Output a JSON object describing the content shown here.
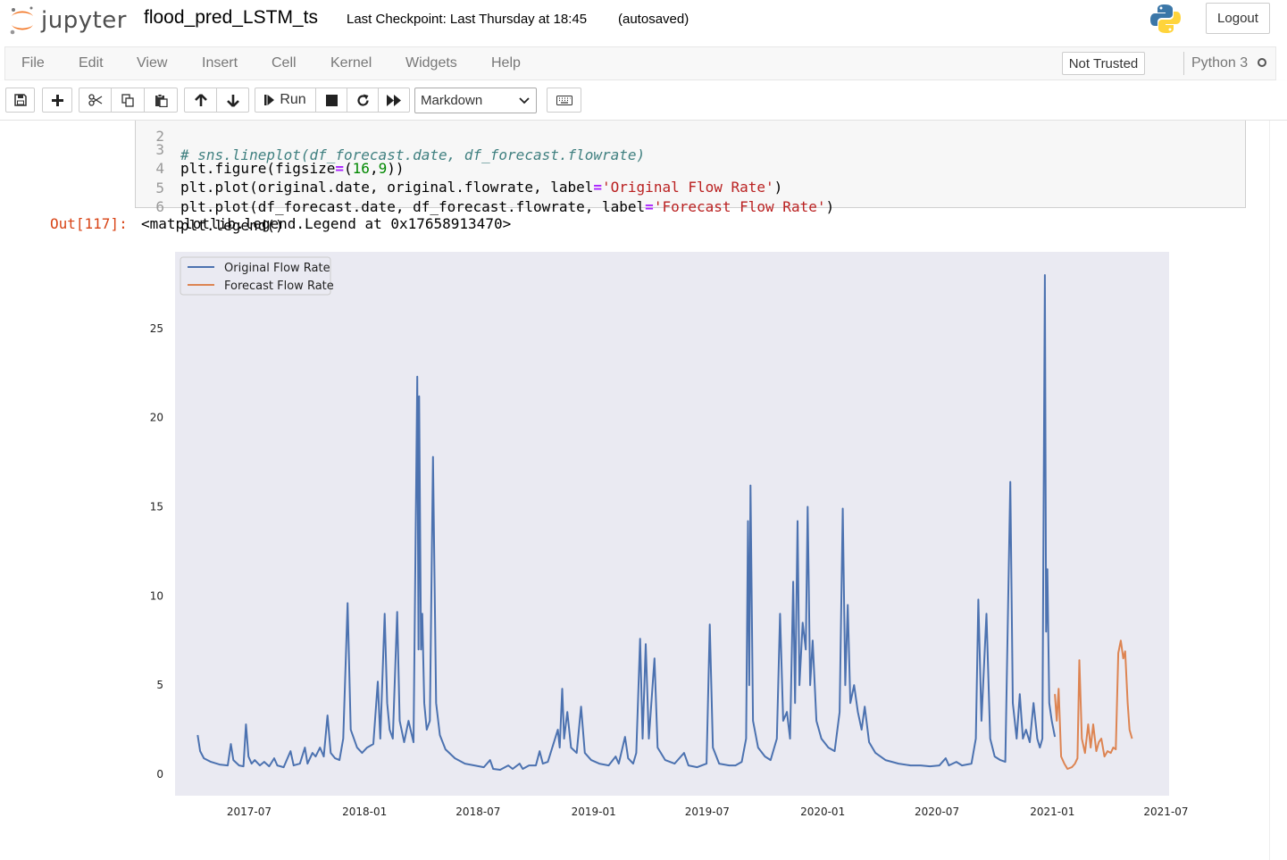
{
  "header": {
    "logo_text": "jupyter",
    "notebook_name": "flood_pred_LSTM_ts",
    "checkpoint": "Last Checkpoint: Last Thursday at 18:45",
    "autosave": "(autosaved)",
    "logout_label": "Logout"
  },
  "menubar": {
    "items": [
      "File",
      "Edit",
      "View",
      "Insert",
      "Cell",
      "Kernel",
      "Widgets",
      "Help"
    ],
    "trust_status": "Not Trusted",
    "kernel_name": "Python 3"
  },
  "toolbar": {
    "run_label": "Run",
    "cell_type": "Markdown"
  },
  "cell": {
    "lines": [
      {
        "n": "2",
        "code": "# sns.lineplot(df_forecast.date, df_forecast.flowrate)"
      },
      {
        "n": "3",
        "code": "plt.figure(figsize=(16,9))"
      },
      {
        "n": "4",
        "code": "plt.plot(original.date, original.flowrate, label='Original Flow Rate')"
      },
      {
        "n": "5",
        "code": "plt.plot(df_forecast.date, df_forecast.flowrate, label='Forecast Flow Rate')"
      },
      {
        "n": "6",
        "code": "plt.legend()"
      }
    ],
    "out_prompt": "Out[117]:",
    "out_text": "<matplotlib.legend.Legend at 0x17658913470>"
  },
  "chart_data": {
    "type": "line",
    "title": "",
    "xlabel": "",
    "ylabel": "",
    "x_ticks": [
      "2017-07",
      "2018-01",
      "2018-07",
      "2019-01",
      "2019-07",
      "2020-01",
      "2020-07",
      "2021-01",
      "2021-07"
    ],
    "y_ticks": [
      0,
      5,
      10,
      15,
      20,
      25
    ],
    "xlim": [
      "2017-03-05",
      "2021-07-06"
    ],
    "ylim": [
      -1.2,
      29.3
    ],
    "grid": false,
    "legend_position": "top-left",
    "background": "#eaeaf2",
    "series": [
      {
        "name": "Original Flow Rate",
        "color": "#4c72b0",
        "points": [
          [
            "2017-04-10",
            2.2
          ],
          [
            "2017-04-14",
            1.3
          ],
          [
            "2017-04-20",
            0.9
          ],
          [
            "2017-05-01",
            0.7
          ],
          [
            "2017-05-15",
            0.55
          ],
          [
            "2017-05-28",
            0.5
          ],
          [
            "2017-06-02",
            1.7
          ],
          [
            "2017-06-06",
            0.8
          ],
          [
            "2017-06-15",
            0.5
          ],
          [
            "2017-06-22",
            0.45
          ],
          [
            "2017-06-26",
            2.8
          ],
          [
            "2017-06-30",
            1.0
          ],
          [
            "2017-07-05",
            0.6
          ],
          [
            "2017-07-10",
            0.8
          ],
          [
            "2017-07-18",
            0.5
          ],
          [
            "2017-07-25",
            0.7
          ],
          [
            "2017-08-02",
            0.45
          ],
          [
            "2017-08-10",
            0.9
          ],
          [
            "2017-08-15",
            0.5
          ],
          [
            "2017-08-25",
            0.4
          ],
          [
            "2017-09-05",
            1.3
          ],
          [
            "2017-09-10",
            0.5
          ],
          [
            "2017-09-20",
            0.6
          ],
          [
            "2017-09-28",
            1.5
          ],
          [
            "2017-10-02",
            0.6
          ],
          [
            "2017-10-10",
            1.2
          ],
          [
            "2017-10-15",
            1.0
          ],
          [
            "2017-10-22",
            1.5
          ],
          [
            "2017-10-28",
            1.0
          ],
          [
            "2017-11-03",
            3.3
          ],
          [
            "2017-11-08",
            1.2
          ],
          [
            "2017-11-15",
            0.9
          ],
          [
            "2017-11-22",
            0.8
          ],
          [
            "2017-11-28",
            2.0
          ],
          [
            "2017-12-05",
            9.6
          ],
          [
            "2017-12-10",
            2.5
          ],
          [
            "2017-12-20",
            1.5
          ],
          [
            "2017-12-28",
            1.2
          ],
          [
            "2018-01-05",
            1.5
          ],
          [
            "2018-01-15",
            1.7
          ],
          [
            "2018-01-22",
            5.2
          ],
          [
            "2018-01-26",
            2.0
          ],
          [
            "2018-02-02",
            9.0
          ],
          [
            "2018-02-06",
            4.0
          ],
          [
            "2018-02-10",
            2.5
          ],
          [
            "2018-02-15",
            2.0
          ],
          [
            "2018-02-22",
            9.1
          ],
          [
            "2018-02-26",
            3.0
          ],
          [
            "2018-03-05",
            1.8
          ],
          [
            "2018-03-12",
            3.0
          ],
          [
            "2018-03-20",
            1.8
          ],
          [
            "2018-03-26",
            22.3
          ],
          [
            "2018-03-28",
            7.0
          ],
          [
            "2018-03-29",
            21.2
          ],
          [
            "2018-04-01",
            7.0
          ],
          [
            "2018-04-03",
            9.0
          ],
          [
            "2018-04-06",
            4.0
          ],
          [
            "2018-04-10",
            2.5
          ],
          [
            "2018-04-15",
            3.0
          ],
          [
            "2018-04-20",
            17.8
          ],
          [
            "2018-04-25",
            4.0
          ],
          [
            "2018-05-01",
            2.2
          ],
          [
            "2018-05-10",
            1.4
          ],
          [
            "2018-05-25",
            0.9
          ],
          [
            "2018-06-10",
            0.6
          ],
          [
            "2018-06-25",
            0.5
          ],
          [
            "2018-07-10",
            0.4
          ],
          [
            "2018-07-20",
            0.8
          ],
          [
            "2018-07-25",
            0.3
          ],
          [
            "2018-08-05",
            0.25
          ],
          [
            "2018-08-18",
            0.5
          ],
          [
            "2018-08-25",
            0.3
          ],
          [
            "2018-09-05",
            0.6
          ],
          [
            "2018-09-10",
            0.3
          ],
          [
            "2018-09-20",
            0.5
          ],
          [
            "2018-10-01",
            0.5
          ],
          [
            "2018-10-07",
            1.3
          ],
          [
            "2018-10-12",
            0.6
          ],
          [
            "2018-10-20",
            0.7
          ],
          [
            "2018-11-05",
            2.5
          ],
          [
            "2018-11-08",
            1.5
          ],
          [
            "2018-11-12",
            4.8
          ],
          [
            "2018-11-15",
            2.0
          ],
          [
            "2018-11-20",
            3.5
          ],
          [
            "2018-11-26",
            1.5
          ],
          [
            "2018-12-05",
            1.2
          ],
          [
            "2018-12-12",
            3.8
          ],
          [
            "2018-12-18",
            1.2
          ],
          [
            "2018-12-28",
            0.8
          ],
          [
            "2019-01-10",
            0.6
          ],
          [
            "2019-01-25",
            0.5
          ],
          [
            "2019-02-05",
            1.0
          ],
          [
            "2019-02-10",
            0.6
          ],
          [
            "2019-02-20",
            2.1
          ],
          [
            "2019-02-25",
            0.9
          ],
          [
            "2019-03-05",
            0.6
          ],
          [
            "2019-03-10",
            1.2
          ],
          [
            "2019-03-16",
            7.6
          ],
          [
            "2019-03-20",
            2.0
          ],
          [
            "2019-03-25",
            7.3
          ],
          [
            "2019-03-30",
            2.0
          ],
          [
            "2019-04-08",
            6.5
          ],
          [
            "2019-04-13",
            1.5
          ],
          [
            "2019-04-25",
            0.8
          ],
          [
            "2019-05-10",
            0.6
          ],
          [
            "2019-05-25",
            1.2
          ],
          [
            "2019-06-01",
            0.5
          ],
          [
            "2019-06-15",
            0.4
          ],
          [
            "2019-06-30",
            0.6
          ],
          [
            "2019-07-05",
            8.4
          ],
          [
            "2019-07-10",
            1.5
          ],
          [
            "2019-07-20",
            0.6
          ],
          [
            "2019-08-05",
            0.5
          ],
          [
            "2019-08-15",
            0.5
          ],
          [
            "2019-08-25",
            0.7
          ],
          [
            "2019-09-01",
            2.0
          ],
          [
            "2019-09-04",
            14.2
          ],
          [
            "2019-09-06",
            5.0
          ],
          [
            "2019-09-08",
            16.2
          ],
          [
            "2019-09-12",
            3.0
          ],
          [
            "2019-09-20",
            1.5
          ],
          [
            "2019-10-01",
            1.0
          ],
          [
            "2019-10-10",
            0.8
          ],
          [
            "2019-10-20",
            2.0
          ],
          [
            "2019-10-25",
            9.0
          ],
          [
            "2019-10-30",
            3.0
          ],
          [
            "2019-11-05",
            3.5
          ],
          [
            "2019-11-10",
            2.0
          ],
          [
            "2019-11-15",
            10.8
          ],
          [
            "2019-11-18",
            4.0
          ],
          [
            "2019-11-22",
            14.2
          ],
          [
            "2019-11-25",
            5.0
          ],
          [
            "2019-11-30",
            8.5
          ],
          [
            "2019-12-05",
            7.0
          ],
          [
            "2019-12-08",
            15.0
          ],
          [
            "2019-12-12",
            5.0
          ],
          [
            "2019-12-16",
            7.5
          ],
          [
            "2019-12-22",
            3.0
          ],
          [
            "2019-12-30",
            2.0
          ],
          [
            "2020-01-10",
            1.5
          ],
          [
            "2020-01-20",
            1.3
          ],
          [
            "2020-01-28",
            3.5
          ],
          [
            "2020-02-02",
            14.9
          ],
          [
            "2020-02-06",
            5.0
          ],
          [
            "2020-02-10",
            9.5
          ],
          [
            "2020-02-14",
            4.0
          ],
          [
            "2020-02-20",
            5.0
          ],
          [
            "2020-02-26",
            3.5
          ],
          [
            "2020-03-03",
            2.5
          ],
          [
            "2020-03-08",
            3.8
          ],
          [
            "2020-03-15",
            1.8
          ],
          [
            "2020-03-25",
            1.2
          ],
          [
            "2020-04-10",
            0.8
          ],
          [
            "2020-05-01",
            0.6
          ],
          [
            "2020-05-20",
            0.5
          ],
          [
            "2020-06-05",
            0.5
          ],
          [
            "2020-06-20",
            0.45
          ],
          [
            "2020-07-05",
            0.5
          ],
          [
            "2020-07-15",
            0.9
          ],
          [
            "2020-07-20",
            0.5
          ],
          [
            "2020-08-01",
            0.7
          ],
          [
            "2020-08-10",
            0.5
          ],
          [
            "2020-08-25",
            0.6
          ],
          [
            "2020-09-01",
            2.0
          ],
          [
            "2020-09-05",
            9.8
          ],
          [
            "2020-09-10",
            3.0
          ],
          [
            "2020-09-18",
            9.0
          ],
          [
            "2020-09-24",
            2.0
          ],
          [
            "2020-10-01",
            1.0
          ],
          [
            "2020-10-10",
            0.8
          ],
          [
            "2020-10-18",
            0.7
          ],
          [
            "2020-10-26",
            16.4
          ],
          [
            "2020-10-30",
            4.0
          ],
          [
            "2020-11-05",
            2.0
          ],
          [
            "2020-11-10",
            4.5
          ],
          [
            "2020-11-15",
            2.0
          ],
          [
            "2020-11-20",
            2.5
          ],
          [
            "2020-11-26",
            1.8
          ],
          [
            "2020-12-02",
            4.0
          ],
          [
            "2020-12-08",
            2.0
          ],
          [
            "2020-12-12",
            1.5
          ],
          [
            "2020-12-16",
            2.0
          ],
          [
            "2020-12-20",
            28.0
          ],
          [
            "2020-12-22",
            8.0
          ],
          [
            "2020-12-24",
            11.5
          ],
          [
            "2020-12-27",
            4.0
          ],
          [
            "2020-12-31",
            3.0
          ],
          [
            "2021-01-05",
            2.1
          ]
        ]
      },
      {
        "name": "Forecast Flow Rate",
        "color": "#dd8452",
        "points": [
          [
            "2021-01-05",
            4.5
          ],
          [
            "2021-01-08",
            3.0
          ],
          [
            "2021-01-11",
            4.8
          ],
          [
            "2021-01-15",
            1.0
          ],
          [
            "2021-01-20",
            0.6
          ],
          [
            "2021-01-25",
            0.3
          ],
          [
            "2021-02-01",
            0.4
          ],
          [
            "2021-02-06",
            0.6
          ],
          [
            "2021-02-10",
            0.9
          ],
          [
            "2021-02-13",
            6.4
          ],
          [
            "2021-02-17",
            2.0
          ],
          [
            "2021-02-22",
            1.2
          ],
          [
            "2021-02-27",
            2.8
          ],
          [
            "2021-03-03",
            1.5
          ],
          [
            "2021-03-07",
            2.8
          ],
          [
            "2021-03-12",
            1.3
          ],
          [
            "2021-03-16",
            1.8
          ],
          [
            "2021-03-20",
            2.0
          ],
          [
            "2021-03-25",
            1.0
          ],
          [
            "2021-03-30",
            1.3
          ],
          [
            "2021-04-04",
            1.2
          ],
          [
            "2021-04-08",
            1.5
          ],
          [
            "2021-04-12",
            1.4
          ],
          [
            "2021-04-16",
            6.8
          ],
          [
            "2021-04-20",
            7.5
          ],
          [
            "2021-04-24",
            6.5
          ],
          [
            "2021-04-27",
            6.9
          ],
          [
            "2021-05-01",
            4.0
          ],
          [
            "2021-05-04",
            2.5
          ],
          [
            "2021-05-08",
            2.0
          ]
        ]
      }
    ]
  }
}
